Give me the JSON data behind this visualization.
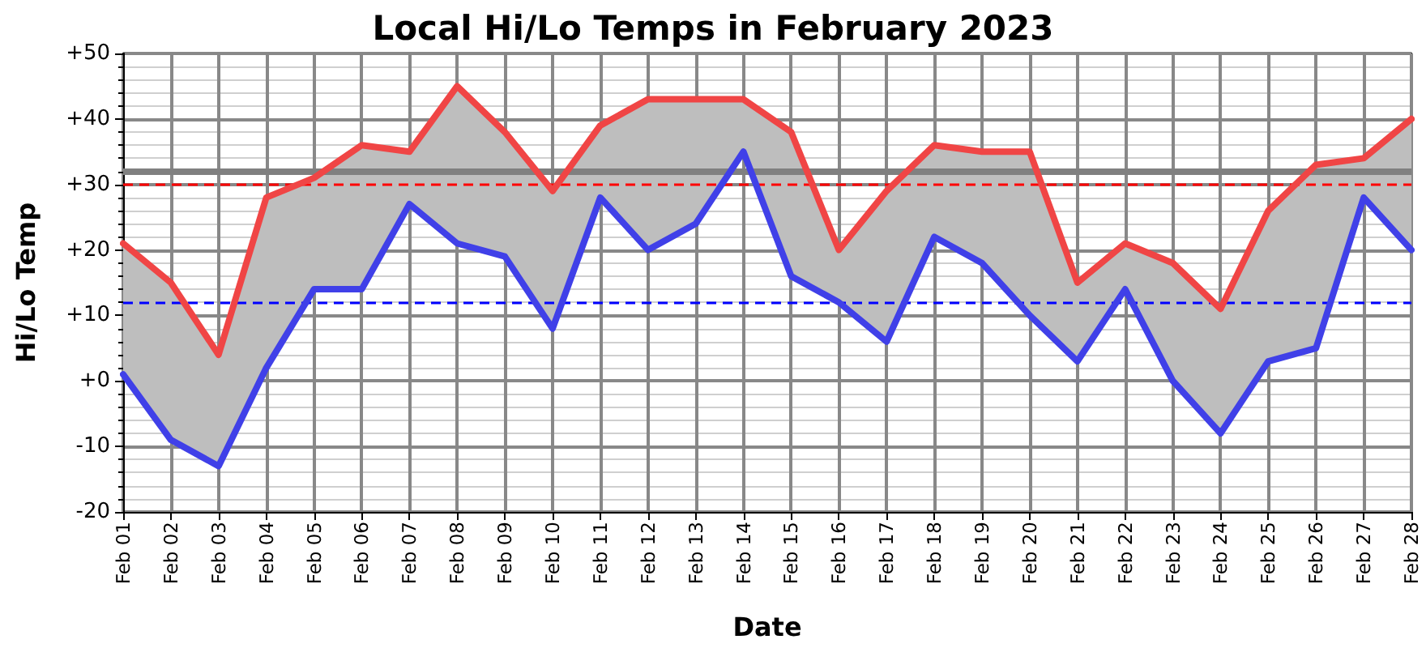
{
  "chart_data": {
    "type": "line",
    "title": "Local Hi/Lo Temps in February 2023",
    "xlabel": "Date",
    "ylabel": "Hi/Lo Temp",
    "categories": [
      "Feb 01",
      "Feb 02",
      "Feb 03",
      "Feb 04",
      "Feb 05",
      "Feb 06",
      "Feb 07",
      "Feb 08",
      "Feb 09",
      "Feb 10",
      "Feb 11",
      "Feb 12",
      "Feb 13",
      "Feb 14",
      "Feb 15",
      "Feb 16",
      "Feb 17",
      "Feb 18",
      "Feb 19",
      "Feb 20",
      "Feb 21",
      "Feb 22",
      "Feb 23",
      "Feb 24",
      "Feb 25",
      "Feb 26",
      "Feb 27",
      "Feb 28"
    ],
    "series": [
      {
        "color": "#f04545",
        "values": [
          21,
          15,
          4,
          28,
          31,
          36,
          35,
          45,
          38,
          29,
          39,
          43,
          43,
          43,
          38,
          20,
          29,
          36,
          35,
          35,
          15,
          21,
          18,
          11,
          26,
          33,
          34,
          40
        ],
        "lower": [
          1,
          -9,
          -13,
          2,
          14,
          14,
          27,
          21,
          19,
          8,
          28,
          20,
          24,
          35,
          16,
          12,
          6,
          22,
          18,
          10,
          3,
          14,
          0,
          -8,
          3,
          5,
          28,
          20
        ],
        "upper": [
          21,
          15,
          4,
          28,
          31,
          36,
          35,
          45,
          38,
          29,
          39,
          43,
          43,
          43,
          38,
          20,
          29,
          36,
          35,
          35,
          15,
          21,
          18,
          11,
          26,
          33,
          34,
          40
        ]
      },
      {
        "color": "#4040e8",
        "values": [
          1,
          -9,
          -13,
          2,
          14,
          14,
          27,
          21,
          19,
          8,
          28,
          20,
          24,
          35,
          16,
          12,
          6,
          22,
          18,
          10,
          3,
          14,
          0,
          -8,
          3,
          5,
          28,
          20
        ]
      }
    ],
    "ylim": [
      -20,
      50
    ],
    "yticks": [
      -20,
      -10,
      {
        "value": 0,
        "label": "+0"
      },
      {
        "value": 10,
        "label": "+10"
      },
      {
        "value": 20,
        "label": "+20"
      },
      {
        "value": 30,
        "label": "+30"
      },
      {
        "value": 40,
        "label": "+40"
      },
      {
        "value": 50,
        "label": "+50"
      }
    ],
    "ref_lines": [
      {
        "axis": "y",
        "value": 32,
        "color": "#808080",
        "line_style": "solid"
      },
      {
        "axis": "y",
        "value": 30,
        "color": "#ff0000",
        "line_style": "dashed"
      },
      {
        "axis": "y",
        "value": 12,
        "color": "#0000ff",
        "line_style": "dashed"
      }
    ],
    "grid": true,
    "marker": "none",
    "line_style": "solid"
  }
}
